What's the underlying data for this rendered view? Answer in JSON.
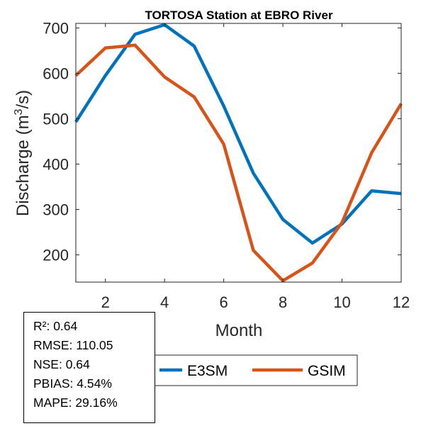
{
  "chart_data": {
    "type": "line",
    "title": "TORTOSA  Station at  EBRO  River",
    "xlabel": "Month",
    "ylabel": "Discharge (m^3/s)",
    "ylabel_main": "Discharge (m",
    "ylabel_sup": "3",
    "ylabel_end": "/s)",
    "xlim": [
      1,
      12
    ],
    "ylim": [
      140,
      710
    ],
    "xticks": [
      2,
      4,
      6,
      8,
      10,
      12
    ],
    "yticks": [
      200,
      300,
      400,
      500,
      600,
      700
    ],
    "x": [
      1,
      2,
      3,
      4,
      5,
      6,
      7,
      8,
      9,
      10,
      11,
      12
    ],
    "series": [
      {
        "name": "E3SM",
        "color": "#0072BD",
        "values": [
          493,
          595,
          686,
          707,
          660,
          528,
          380,
          278,
          226,
          268,
          341,
          335
        ]
      },
      {
        "name": "GSIM",
        "color": "#D95319",
        "values": [
          595,
          656,
          662,
          592,
          548,
          444,
          210,
          143,
          182,
          271,
          425,
          533
        ]
      }
    ],
    "legend": {
      "entries": [
        "E3SM",
        "GSIM"
      ],
      "placement": "bottom"
    },
    "stats": [
      "R²: 0.64",
      "RMSE: 110.05",
      "NSE: 0.64",
      "PBIAS: 4.54%",
      "MAPE: 29.16%"
    ]
  }
}
